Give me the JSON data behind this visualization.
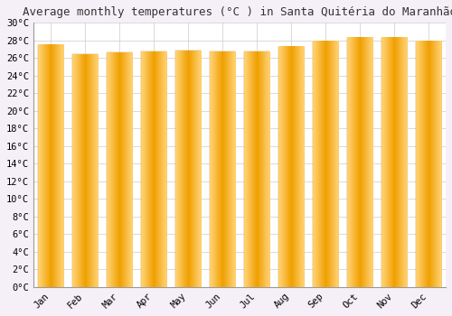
{
  "title": "Average monthly temperatures (°C ) in Santa Quitéria do Maranhão",
  "months": [
    "Jan",
    "Feb",
    "Mar",
    "Apr",
    "May",
    "Jun",
    "Jul",
    "Aug",
    "Sep",
    "Oct",
    "Nov",
    "Dec"
  ],
  "values": [
    27.5,
    26.4,
    26.6,
    26.7,
    26.8,
    26.7,
    26.7,
    27.3,
    27.9,
    28.3,
    28.3,
    27.9
  ],
  "bar_color_center": "#FFD070",
  "bar_color_edge": "#F0A000",
  "ylim": [
    0,
    30
  ],
  "yticks": [
    0,
    2,
    4,
    6,
    8,
    10,
    12,
    14,
    16,
    18,
    20,
    22,
    24,
    26,
    28,
    30
  ],
  "background_color": "#F5F0F8",
  "plot_bg_color": "#FFFFFF",
  "grid_color": "#CCCCCC",
  "title_fontsize": 9,
  "tick_fontsize": 7.5,
  "font_family": "monospace"
}
